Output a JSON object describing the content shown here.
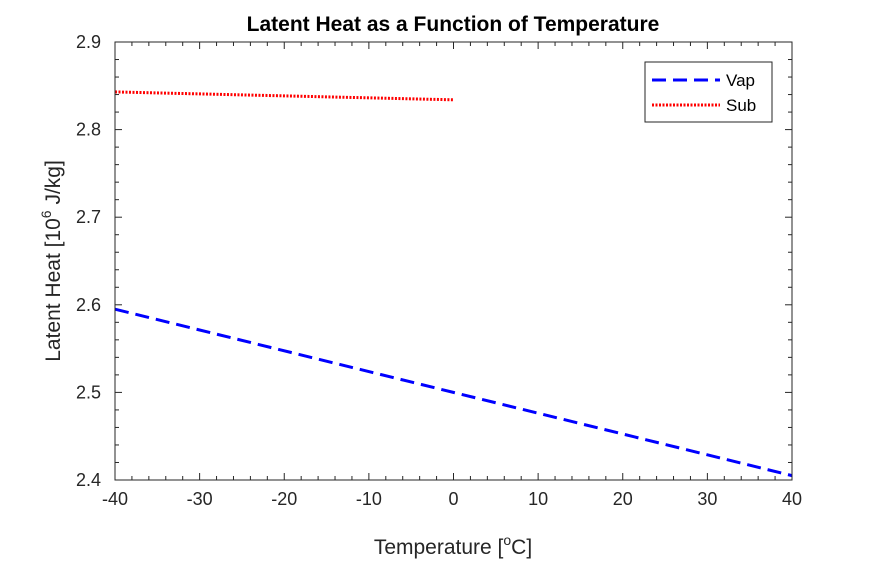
{
  "chart_data": {
    "type": "line",
    "title": "Latent Heat as a Function of Temperature",
    "xlabel_prefix": "Temperature [",
    "xlabel_sup": "o",
    "xlabel_suffix": "C]",
    "ylabel_prefix": "Latent Heat [10",
    "ylabel_sup": "6",
    "ylabel_suffix": " J/kg]",
    "xlim": [
      -40,
      40
    ],
    "ylim": [
      2.4,
      2.9
    ],
    "xticks": [
      -40,
      -30,
      -20,
      -10,
      0,
      10,
      20,
      30,
      40
    ],
    "yticks": [
      2.4,
      2.5,
      2.6,
      2.7,
      2.8,
      2.9
    ],
    "xtick_labels": [
      "-40",
      "-30",
      "-20",
      "-10",
      "0",
      "10",
      "20",
      "30",
      "40"
    ],
    "ytick_labels": [
      "2.4",
      "2.5",
      "2.6",
      "2.7",
      "2.8",
      "2.9"
    ],
    "grid": false,
    "legend_position": "top-right",
    "series": [
      {
        "name": "Vap",
        "color": "#0000ff",
        "style": "dashed",
        "x": [
          -40,
          40
        ],
        "y": [
          2.595,
          2.405
        ]
      },
      {
        "name": "Sub",
        "color": "#ff0000",
        "style": "dotted",
        "x": [
          -40,
          0
        ],
        "y": [
          2.843,
          2.834
        ]
      }
    ]
  }
}
